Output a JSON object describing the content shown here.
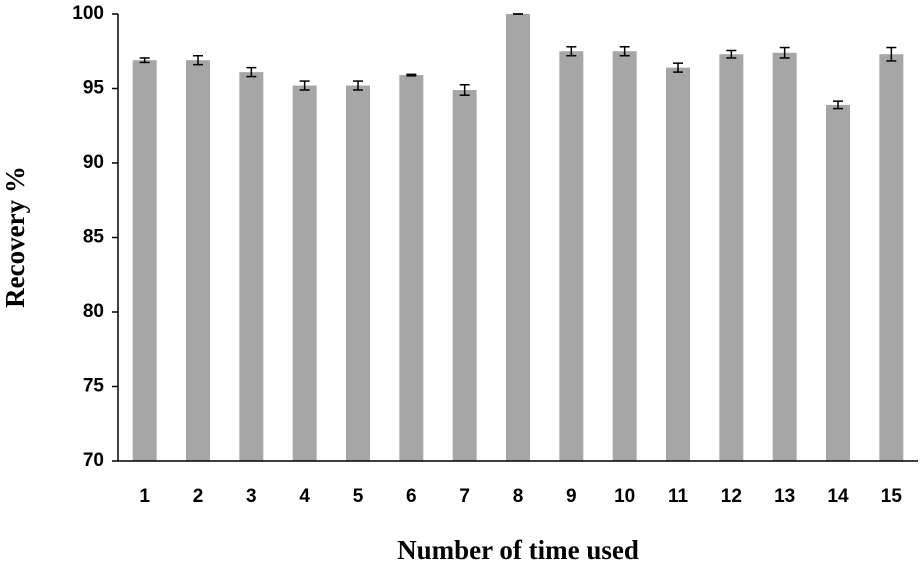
{
  "chart_data": {
    "type": "bar",
    "x_label": "Number of time used",
    "y_label": "Recovery %",
    "categories": [
      "1",
      "2",
      "3",
      "4",
      "5",
      "6",
      "7",
      "8",
      "9",
      "10",
      "11",
      "12",
      "13",
      "14",
      "15"
    ],
    "values": [
      96.9,
      96.9,
      96.1,
      95.2,
      95.2,
      95.9,
      94.9,
      100,
      97.5,
      97.5,
      96.4,
      97.3,
      97.4,
      93.9,
      97.3
    ],
    "errors": [
      0.15,
      0.3,
      0.3,
      0.3,
      0.3,
      0.05,
      0.35,
      0,
      0.3,
      0.3,
      0.3,
      0.25,
      0.35,
      0.25,
      0.45
    ],
    "color": "#a6a6a6",
    "ylim": [
      70,
      100
    ],
    "yticks": [
      70,
      75,
      80,
      85,
      90,
      95,
      100
    ],
    "grid": false
  }
}
